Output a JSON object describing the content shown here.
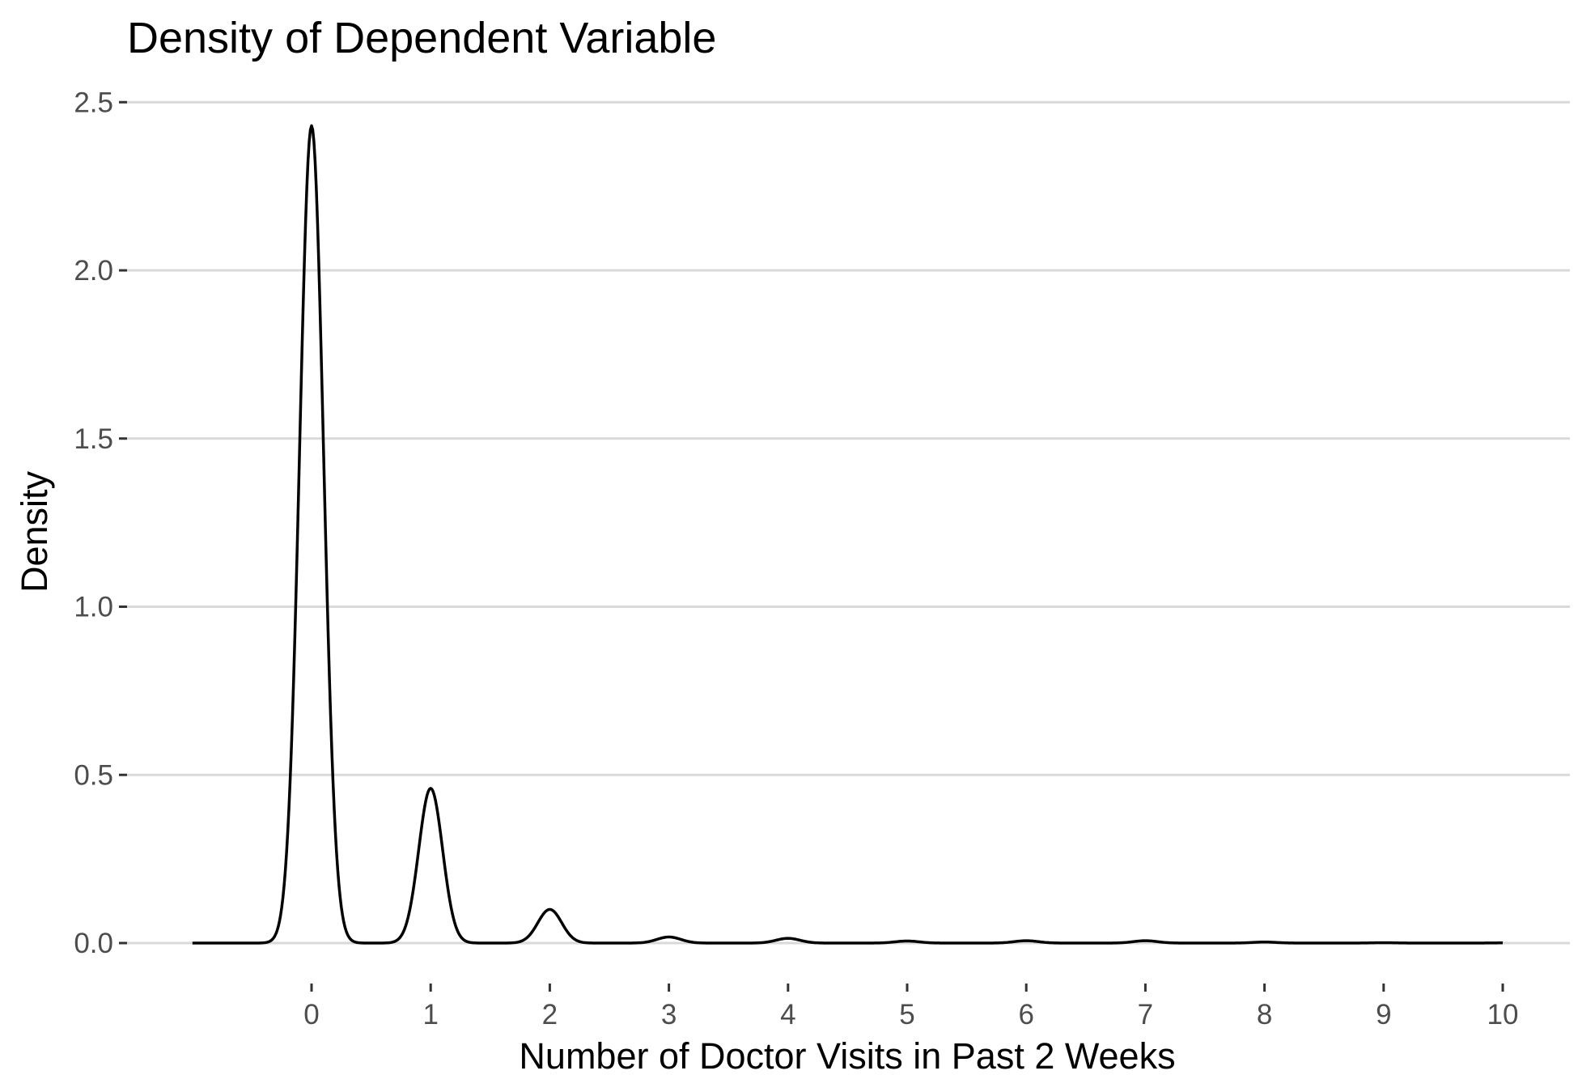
{
  "chart_data": {
    "type": "line",
    "title": "Density of Dependent Variable",
    "xlabel": "Number of Doctor Visits in Past 2 Weeks",
    "ylabel": "Density",
    "xlim": [
      -1.0,
      10.0
    ],
    "ylim": [
      0,
      2.5
    ],
    "x_ticks": [
      0,
      1,
      2,
      3,
      4,
      5,
      6,
      7,
      8,
      9,
      10
    ],
    "x_tick_labels": [
      "0",
      "1",
      "2",
      "3",
      "4",
      "5",
      "6",
      "7",
      "8",
      "9",
      "10"
    ],
    "y_ticks": [
      0,
      0.5,
      1.0,
      1.5,
      2.0,
      2.5
    ],
    "y_tick_labels": [
      "0.0",
      "0.5",
      "1.0",
      "1.5",
      "2.0",
      "2.5"
    ],
    "grid": "horizontal major",
    "legend": "none",
    "line_color": "#000000",
    "series": [
      {
        "peaks": [
          {
            "x": 0,
            "density": 2.43
          },
          {
            "x": 1,
            "density": 0.46
          },
          {
            "x": 2,
            "density": 0.1
          },
          {
            "x": 3,
            "density": 0.018
          },
          {
            "x": 4,
            "density": 0.014
          },
          {
            "x": 5,
            "density": 0.006
          },
          {
            "x": 6,
            "density": 0.007
          },
          {
            "x": 7,
            "density": 0.007
          },
          {
            "x": 8,
            "density": 0.003
          },
          {
            "x": 9,
            "density": 0.001
          },
          {
            "x": 10,
            "density": 0.0005
          }
        ],
        "bandwidth": 0.1,
        "x_range": [
          -1.0,
          10.0
        ]
      }
    ]
  }
}
